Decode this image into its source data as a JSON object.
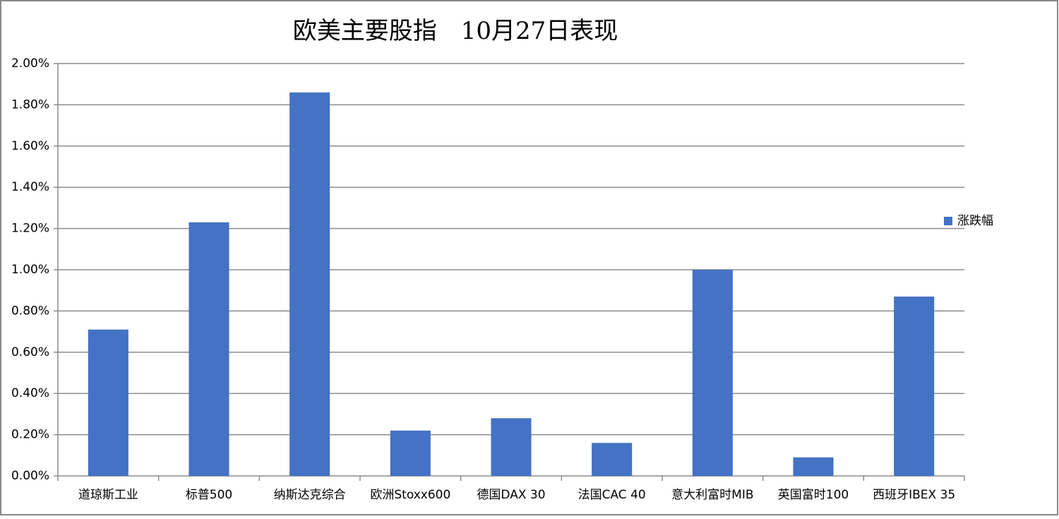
{
  "chart_data": {
    "type": "bar",
    "title": "欧美主要股指　10月27日表现",
    "categories": [
      "道琼斯工业",
      "标普500",
      "纳斯达克综合",
      "欧洲Stoxx600",
      "德国DAX 30",
      "法国CAC 40",
      "意大利富时MIB",
      "英国富时100",
      "西班牙IBEX 35"
    ],
    "series": [
      {
        "name": "涨跌幅",
        "color": "#4472c4",
        "values": [
          0.71,
          1.23,
          1.86,
          0.22,
          0.28,
          0.16,
          1.0,
          0.09,
          0.87
        ]
      }
    ],
    "ylim": [
      0,
      2
    ],
    "yticks": [
      {
        "value": 0,
        "label": "0.00%"
      },
      {
        "value": 0.2,
        "label": "0.20%"
      },
      {
        "value": 0.4,
        "label": "0.40%"
      },
      {
        "value": 0.6,
        "label": "0.60%"
      },
      {
        "value": 0.8,
        "label": "0.80%"
      },
      {
        "value": 1.0,
        "label": "1.00%"
      },
      {
        "value": 1.2,
        "label": "1.20%"
      },
      {
        "value": 1.4,
        "label": "1.40%"
      },
      {
        "value": 1.6,
        "label": "1.60%"
      },
      {
        "value": 1.8,
        "label": "1.80%"
      },
      {
        "value": 2.0,
        "label": "2.00%"
      }
    ],
    "grid": true,
    "legend": "right"
  }
}
